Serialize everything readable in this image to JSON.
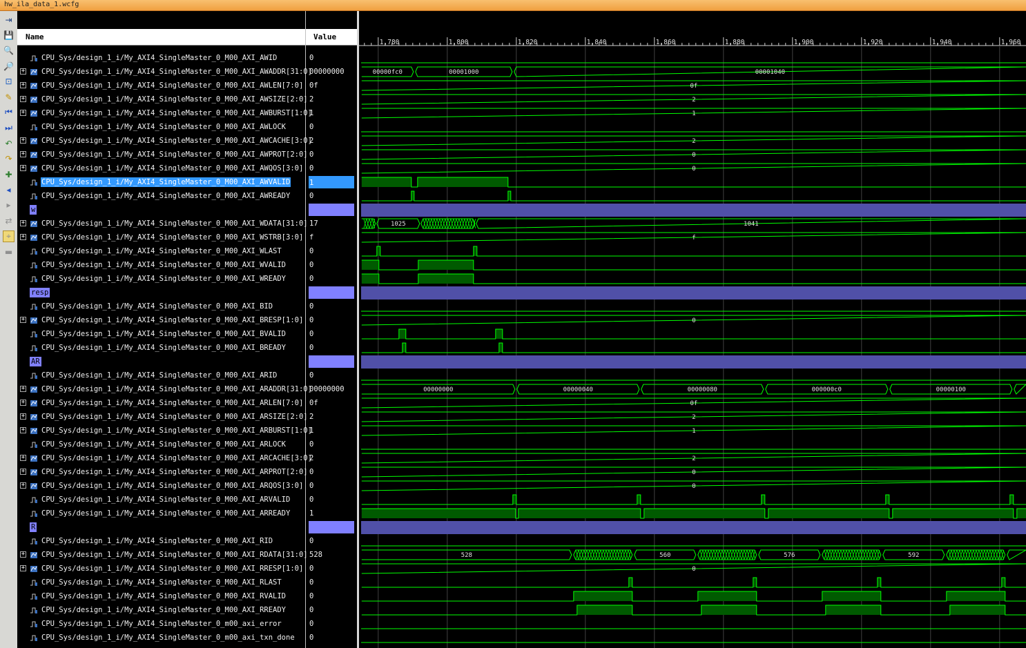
{
  "window": {
    "title": "hw_ila_data_1.wcfg"
  },
  "columns": {
    "name": "Name",
    "value": "Value"
  },
  "toolbar": [
    "zoom-fit-icon",
    "save-icon",
    "zoom-in-icon",
    "zoom-out-icon",
    "zoom-full-icon",
    "cursor-icon",
    "go-start-icon",
    "go-end-icon",
    "prev-transition-icon",
    "next-transition-icon",
    "add-marker-icon",
    "prev-marker-icon",
    "next-marker-icon",
    "swap-cursors-icon",
    "snap-icon",
    "disabled-icon"
  ],
  "ruler": {
    "labels": [
      "1,780",
      "1,800",
      "1,820",
      "1,840",
      "1,860",
      "1,880",
      "1,900",
      "1,920",
      "1,940",
      "1,960"
    ]
  },
  "rows": [
    {
      "name": "CPU_Sys/design_1_i/My_AXI4_SingleMaster_0_M00_AXI_AWID",
      "value": "0",
      "bus": false
    },
    {
      "name": "CPU_Sys/design_1_i/My_AXI4_SingleMaster_0_M00_AXI_AWADDR[31:0]",
      "value": "00000000",
      "bus": true
    },
    {
      "name": "CPU_Sys/design_1_i/My_AXI4_SingleMaster_0_M00_AXI_AWLEN[7:0]",
      "value": "0f",
      "bus": true
    },
    {
      "name": "CPU_Sys/design_1_i/My_AXI4_SingleMaster_0_M00_AXI_AWSIZE[2:0]",
      "value": "2",
      "bus": true
    },
    {
      "name": "CPU_Sys/design_1_i/My_AXI4_SingleMaster_0_M00_AXI_AWBURST[1:0]",
      "value": "1",
      "bus": true
    },
    {
      "name": "CPU_Sys/design_1_i/My_AXI4_SingleMaster_0_M00_AXI_AWLOCK",
      "value": "0",
      "bus": false
    },
    {
      "name": "CPU_Sys/design_1_i/My_AXI4_SingleMaster_0_M00_AXI_AWCACHE[3:0]",
      "value": "2",
      "bus": true
    },
    {
      "name": "CPU_Sys/design_1_i/My_AXI4_SingleMaster_0_M00_AXI_AWPROT[2:0]",
      "value": "0",
      "bus": true
    },
    {
      "name": "CPU_Sys/design_1_i/My_AXI4_SingleMaster_0_M00_AXI_AWQOS[3:0]",
      "value": "0",
      "bus": true
    },
    {
      "name": "CPU_Sys/design_1_i/My_AXI4_SingleMaster_0_M00_AXI_AWVALID",
      "value": "1",
      "bus": false,
      "selected": true
    },
    {
      "name": "CPU_Sys/design_1_i/My_AXI4_SingleMaster_0_M00_AXI_AWREADY",
      "value": "0",
      "bus": false
    },
    {
      "name": "w",
      "value": "",
      "group": true
    },
    {
      "name": "CPU_Sys/design_1_i/My_AXI4_SingleMaster_0_M00_AXI_WDATA[31:0]",
      "value": "17",
      "bus": true
    },
    {
      "name": "CPU_Sys/design_1_i/My_AXI4_SingleMaster_0_M00_AXI_WSTRB[3:0]",
      "value": "f",
      "bus": true
    },
    {
      "name": "CPU_Sys/design_1_i/My_AXI4_SingleMaster_0_M00_AXI_WLAST",
      "value": "0",
      "bus": false
    },
    {
      "name": "CPU_Sys/design_1_i/My_AXI4_SingleMaster_0_M00_AXI_WVALID",
      "value": "0",
      "bus": false
    },
    {
      "name": "CPU_Sys/design_1_i/My_AXI4_SingleMaster_0_M00_AXI_WREADY",
      "value": "0",
      "bus": false
    },
    {
      "name": "resp",
      "value": "",
      "group": true
    },
    {
      "name": "CPU_Sys/design_1_i/My_AXI4_SingleMaster_0_M00_AXI_BID",
      "value": "0",
      "bus": false
    },
    {
      "name": "CPU_Sys/design_1_i/My_AXI4_SingleMaster_0_M00_AXI_BRESP[1:0]",
      "value": "0",
      "bus": true
    },
    {
      "name": "CPU_Sys/design_1_i/My_AXI4_SingleMaster_0_M00_AXI_BVALID",
      "value": "0",
      "bus": false
    },
    {
      "name": "CPU_Sys/design_1_i/My_AXI4_SingleMaster_0_M00_AXI_BREADY",
      "value": "0",
      "bus": false
    },
    {
      "name": "AR",
      "value": "",
      "group": true
    },
    {
      "name": "CPU_Sys/design_1_i/My_AXI4_SingleMaster_0_M00_AXI_ARID",
      "value": "0",
      "bus": false
    },
    {
      "name": "CPU_Sys/design_1_i/My_AXI4_SingleMaster_0_M00_AXI_ARADDR[31:0]",
      "value": "00000000",
      "bus": true
    },
    {
      "name": "CPU_Sys/design_1_i/My_AXI4_SingleMaster_0_M00_AXI_ARLEN[7:0]",
      "value": "0f",
      "bus": true
    },
    {
      "name": "CPU_Sys/design_1_i/My_AXI4_SingleMaster_0_M00_AXI_ARSIZE[2:0]",
      "value": "2",
      "bus": true
    },
    {
      "name": "CPU_Sys/design_1_i/My_AXI4_SingleMaster_0_M00_AXI_ARBURST[1:0]",
      "value": "1",
      "bus": true
    },
    {
      "name": "CPU_Sys/design_1_i/My_AXI4_SingleMaster_0_M00_AXI_ARLOCK",
      "value": "0",
      "bus": false
    },
    {
      "name": "CPU_Sys/design_1_i/My_AXI4_SingleMaster_0_M00_AXI_ARCACHE[3:0]",
      "value": "2",
      "bus": true
    },
    {
      "name": "CPU_Sys/design_1_i/My_AXI4_SingleMaster_0_M00_AXI_ARPROT[2:0]",
      "value": "0",
      "bus": true
    },
    {
      "name": "CPU_Sys/design_1_i/My_AXI4_SingleMaster_0_M00_AXI_ARQOS[3:0]",
      "value": "0",
      "bus": true
    },
    {
      "name": "CPU_Sys/design_1_i/My_AXI4_SingleMaster_0_M00_AXI_ARVALID",
      "value": "0",
      "bus": false
    },
    {
      "name": "CPU_Sys/design_1_i/My_AXI4_SingleMaster_0_M00_AXI_ARREADY",
      "value": "1",
      "bus": false
    },
    {
      "name": "R",
      "value": "",
      "group": true
    },
    {
      "name": "CPU_Sys/design_1_i/My_AXI4_SingleMaster_0_M00_AXI_RID",
      "value": "0",
      "bus": false
    },
    {
      "name": "CPU_Sys/design_1_i/My_AXI4_SingleMaster_0_M00_AXI_RDATA[31:0]",
      "value": "528",
      "bus": true
    },
    {
      "name": "CPU_Sys/design_1_i/My_AXI4_SingleMaster_0_M00_AXI_RRESP[1:0]",
      "value": "0",
      "bus": true
    },
    {
      "name": "CPU_Sys/design_1_i/My_AXI4_SingleMaster_0_M00_AXI_RLAST",
      "value": "0",
      "bus": false
    },
    {
      "name": "CPU_Sys/design_1_i/My_AXI4_SingleMaster_0_M00_AXI_RVALID",
      "value": "0",
      "bus": false
    },
    {
      "name": "CPU_Sys/design_1_i/My_AXI4_SingleMaster_0_M00_AXI_RREADY",
      "value": "0",
      "bus": false
    },
    {
      "name": "CPU_Sys/design_1_i/My_AXI4_SingleMaster_0_m00_axi_error",
      "value": "0",
      "bus": false
    },
    {
      "name": "CPU_Sys/design_1_i/My_AXI4_SingleMaster_0_m00_axi_txn_done",
      "value": "0",
      "bus": false
    }
  ],
  "waves": {
    "time_start": 1775.2,
    "time_per_div": 20,
    "rows": [
      {
        "type": "const"
      },
      {
        "type": "bus",
        "segs": [
          [
            1775.2,
            1790.2,
            "00000fc0"
          ],
          [
            1790.8,
            1818.8,
            "00001000"
          ],
          [
            1819.4,
            1968,
            "00001040"
          ]
        ]
      },
      {
        "type": "bus",
        "segs": [
          [
            1775.2,
            1968,
            "0f"
          ]
        ]
      },
      {
        "type": "bus",
        "segs": [
          [
            1775.2,
            1968,
            "2"
          ]
        ]
      },
      {
        "type": "bus",
        "segs": [
          [
            1775.2,
            1968,
            "1"
          ]
        ]
      },
      {
        "type": "const"
      },
      {
        "type": "bus",
        "segs": [
          [
            1775.2,
            1968,
            "2"
          ]
        ]
      },
      {
        "type": "bus",
        "segs": [
          [
            1775.2,
            1968,
            "0"
          ]
        ]
      },
      {
        "type": "bus",
        "segs": [
          [
            1775.2,
            1968,
            "0"
          ]
        ]
      },
      {
        "type": "bit",
        "high": [
          [
            1775.2,
            1789.6
          ],
          [
            1791.4,
            1817.6
          ]
        ]
      },
      {
        "type": "bit",
        "high": [
          [
            1789.6,
            1790.4
          ],
          [
            1817.6,
            1818.4
          ]
        ]
      },
      {
        "type": "group"
      },
      {
        "type": "bus",
        "segs": [
          [
            1775.2,
            1779.2,
            "",
            "x"
          ],
          [
            1779.6,
            1792,
            "1025"
          ],
          [
            1792.4,
            1808,
            "",
            "x"
          ],
          [
            1808.4,
            1968,
            "1041"
          ]
        ]
      },
      {
        "type": "bus",
        "segs": [
          [
            1775.2,
            1968,
            "f"
          ]
        ]
      },
      {
        "type": "bit",
        "high": [
          [
            1779.6,
            1780.6
          ],
          [
            1807.6,
            1808.6
          ]
        ]
      },
      {
        "type": "bit",
        "high": [
          [
            1775.2,
            1780.2
          ],
          [
            1791.6,
            1807.6
          ]
        ]
      },
      {
        "type": "bit",
        "high": [
          [
            1775.2,
            1780.2
          ],
          [
            1791.6,
            1807.6
          ]
        ]
      },
      {
        "type": "group"
      },
      {
        "type": "const"
      },
      {
        "type": "bus",
        "segs": [
          [
            1775.2,
            1968,
            "0"
          ]
        ]
      },
      {
        "type": "bit",
        "high": [
          [
            1786,
            1788
          ],
          [
            1814,
            1816
          ]
        ]
      },
      {
        "type": "bit",
        "high": [
          [
            1787,
            1788
          ],
          [
            1815,
            1816
          ]
        ]
      },
      {
        "type": "group"
      },
      {
        "type": "const"
      },
      {
        "type": "bus",
        "segs": [
          [
            1775.2,
            1819.6,
            "00000000"
          ],
          [
            1820.2,
            1855.6,
            "00000040"
          ],
          [
            1856.2,
            1891.6,
            "00000080"
          ],
          [
            1892.2,
            1927.6,
            "000000c0"
          ],
          [
            1928.2,
            1963.6,
            "00000100"
          ],
          [
            1964.2,
            1968,
            ""
          ]
        ]
      },
      {
        "type": "bus",
        "segs": [
          [
            1775.2,
            1968,
            "0f"
          ]
        ]
      },
      {
        "type": "bus",
        "segs": [
          [
            1775.2,
            1968,
            "2"
          ]
        ]
      },
      {
        "type": "bus",
        "segs": [
          [
            1775.2,
            1968,
            "1"
          ]
        ]
      },
      {
        "type": "const"
      },
      {
        "type": "bus",
        "segs": [
          [
            1775.2,
            1968,
            "2"
          ]
        ]
      },
      {
        "type": "bus",
        "segs": [
          [
            1775.2,
            1968,
            "0"
          ]
        ]
      },
      {
        "type": "bus",
        "segs": [
          [
            1775.2,
            1968,
            "0"
          ]
        ]
      },
      {
        "type": "bit",
        "high": [
          [
            1819,
            1820
          ],
          [
            1855,
            1856
          ],
          [
            1891,
            1892
          ],
          [
            1927,
            1928
          ],
          [
            1963,
            1964
          ]
        ]
      },
      {
        "type": "bit",
        "high": [
          [
            1775.2,
            1819.8
          ],
          [
            1820.6,
            1856
          ],
          [
            1857,
            1892
          ],
          [
            1893,
            1928
          ],
          [
            1929,
            1964
          ],
          [
            1965,
            1968
          ]
        ]
      },
      {
        "type": "group"
      },
      {
        "type": "const"
      },
      {
        "type": "bus",
        "segs": [
          [
            1775.2,
            1836,
            "528"
          ],
          [
            1836.6,
            1853.6,
            "",
            "x"
          ],
          [
            1854.2,
            1872,
            "560"
          ],
          [
            1872.6,
            1889.6,
            "",
            "x"
          ],
          [
            1890.2,
            1908,
            "576"
          ],
          [
            1908.6,
            1925.6,
            "",
            "x"
          ],
          [
            1926.2,
            1944,
            "592"
          ],
          [
            1944.6,
            1961.6,
            "",
            "x"
          ],
          [
            1962.2,
            1968,
            ""
          ]
        ]
      },
      {
        "type": "bus",
        "segs": [
          [
            1775.2,
            1968,
            "0"
          ]
        ]
      },
      {
        "type": "bit",
        "high": [
          [
            1852.6,
            1853.6
          ],
          [
            1888.6,
            1889.6
          ],
          [
            1924.6,
            1925.6
          ],
          [
            1960.6,
            1961.6
          ]
        ]
      },
      {
        "type": "bit",
        "high": [
          [
            1836.6,
            1853.6
          ],
          [
            1872.6,
            1889.6
          ],
          [
            1908.6,
            1925.6
          ],
          [
            1944.6,
            1961.6
          ]
        ]
      },
      {
        "type": "bit",
        "high": [
          [
            1837.6,
            1853.6
          ],
          [
            1873.6,
            1889.6
          ],
          [
            1909.6,
            1925.6
          ],
          [
            1945.6,
            1961.6
          ]
        ]
      },
      {
        "type": "const"
      },
      {
        "type": "const"
      }
    ]
  },
  "colors": {
    "wave": "#00ff00",
    "fill": "#005a00",
    "group": "#5050a8",
    "grid": "#303030",
    "selection": "#3399ff"
  }
}
